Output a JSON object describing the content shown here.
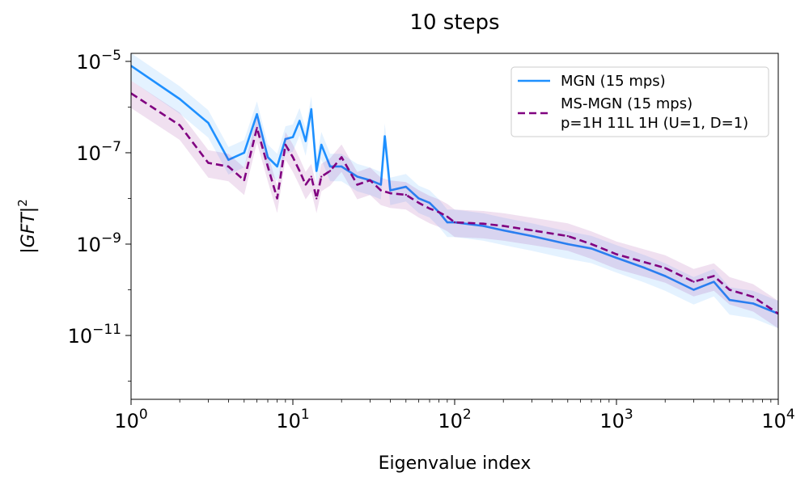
{
  "chart_data": {
    "type": "line",
    "title": "10 steps",
    "xlabel": "Eigenvalue index",
    "ylabel": "|GFT|",
    "ylabel_exponent": "2",
    "x_scale": "log",
    "y_scale": "log",
    "xlim": [
      1,
      10000
    ],
    "ylim": [
      4e-13,
      1.5e-05
    ],
    "x_ticks": [
      {
        "value": 1,
        "base": "10",
        "exp": "0"
      },
      {
        "value": 10,
        "base": "10",
        "exp": "1"
      },
      {
        "value": 100,
        "base": "10",
        "exp": "2"
      },
      {
        "value": 1000,
        "base": "10",
        "exp": "3"
      },
      {
        "value": 10000,
        "base": "10",
        "exp": "4"
      }
    ],
    "y_ticks": [
      {
        "value": 1e-05,
        "base": "10",
        "exp": "−5"
      },
      {
        "value": 1e-07,
        "base": "10",
        "exp": "−7"
      },
      {
        "value": 1e-09,
        "base": "10",
        "exp": "−9"
      },
      {
        "value": 1e-11,
        "base": "10",
        "exp": "−11"
      }
    ],
    "grid": false,
    "legend_position": "top-right",
    "series": [
      {
        "name": "MGN (15 mps)",
        "color": "#1e90ff",
        "line_style": "solid",
        "x": [
          1,
          2,
          3,
          4,
          5,
          6,
          7,
          8,
          9,
          10,
          11,
          12,
          13,
          14,
          15,
          17,
          20,
          25,
          30,
          35,
          37,
          40,
          50,
          60,
          70,
          80,
          90,
          100,
          150,
          200,
          300,
          500,
          700,
          1000,
          1500,
          2000,
          3000,
          4000,
          5000,
          7000,
          10000
        ],
        "values": [
          8e-06,
          1.5e-06,
          4.5e-07,
          7e-08,
          1e-07,
          7e-07,
          8e-08,
          5e-08,
          2e-07,
          2.2e-07,
          5e-07,
          1.8e-07,
          9e-07,
          4e-08,
          1.5e-07,
          5e-08,
          5e-08,
          3e-08,
          2.5e-08,
          2e-08,
          2.3e-07,
          1.5e-08,
          1.8e-08,
          1e-08,
          8e-09,
          5e-09,
          3e-09,
          3e-09,
          2.5e-09,
          2e-09,
          1.5e-09,
          1e-09,
          8e-10,
          5e-10,
          3e-10,
          2e-10,
          1e-10,
          1.5e-10,
          6e-11,
          5e-11,
          3e-11
        ]
      },
      {
        "name": "MS-MGN (15 mps)",
        "name_line2": "p=1H 11L 1H (U=1, D=1)",
        "color": "#800080",
        "line_style": "dashed",
        "x": [
          1,
          2,
          3,
          4,
          5,
          6,
          7,
          8,
          9,
          10,
          11,
          12,
          13,
          14,
          15,
          17,
          20,
          25,
          30,
          35,
          40,
          50,
          60,
          70,
          80,
          90,
          100,
          150,
          200,
          300,
          500,
          700,
          1000,
          1500,
          2000,
          3000,
          4000,
          5000,
          7000,
          10000
        ],
        "values": [
          2e-06,
          4e-07,
          6e-08,
          5e-08,
          2.5e-08,
          3.5e-07,
          5e-08,
          1e-08,
          1.5e-07,
          8e-08,
          4e-08,
          2e-08,
          3e-08,
          1e-08,
          3e-08,
          4e-08,
          8e-08,
          2e-08,
          2.5e-08,
          1.5e-08,
          1.3e-08,
          1.2e-08,
          8e-09,
          6e-09,
          5e-09,
          4e-09,
          3e-09,
          2.8e-09,
          2.5e-09,
          2e-09,
          1.5e-09,
          1e-09,
          6e-10,
          4e-10,
          3e-10,
          1.5e-10,
          2e-10,
          1e-10,
          7e-11,
          3e-11
        ]
      }
    ]
  }
}
